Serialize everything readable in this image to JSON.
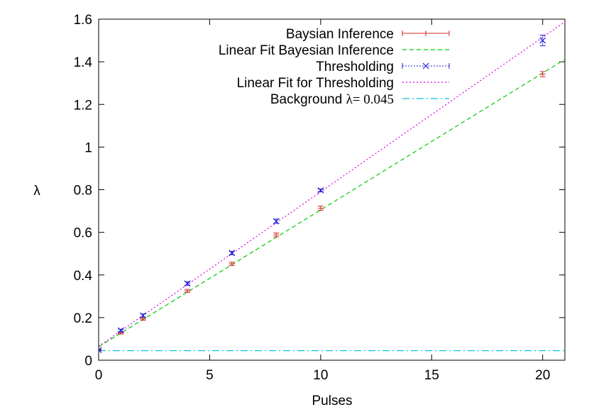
{
  "chart_data": {
    "type": "line",
    "title": "",
    "xlabel": "Pulses",
    "ylabel": "λ",
    "xlim": [
      0,
      21
    ],
    "ylim": [
      0,
      1.6
    ],
    "xticks": [
      "0",
      "5",
      "10",
      "15",
      "20"
    ],
    "xtick_values": [
      0,
      5,
      10,
      15,
      20
    ],
    "yticks": [
      "0",
      "0.2",
      "0.4",
      "0.6",
      "0.8",
      "1",
      "1.2",
      "1.4",
      "1.6"
    ],
    "ytick_values": [
      0,
      0.2,
      0.4,
      0.6,
      0.8,
      1.0,
      1.2,
      1.4,
      1.6
    ],
    "grid": false,
    "legend_position": "top-right",
    "series": [
      {
        "name": "Baysian Inference",
        "kind": "errorbar",
        "color": "#d62728",
        "points": [
          {
            "x": 0,
            "y": 0.048,
            "err": 0.003
          },
          {
            "x": 1,
            "y": 0.128,
            "err": 0.005
          },
          {
            "x": 2,
            "y": 0.193,
            "err": 0.006
          },
          {
            "x": 4,
            "y": 0.325,
            "err": 0.007
          },
          {
            "x": 6,
            "y": 0.452,
            "err": 0.008
          },
          {
            "x": 8,
            "y": 0.588,
            "err": 0.009
          },
          {
            "x": 10,
            "y": 0.713,
            "err": 0.01
          },
          {
            "x": 20,
            "y": 1.342,
            "err": 0.012
          }
        ]
      },
      {
        "name": "Linear Fit Bayesian Inference",
        "kind": "fit",
        "color": "#00cc00",
        "dash": "6,4",
        "intercept": 0.063,
        "slope": 0.0642
      },
      {
        "name": "Thresholding",
        "kind": "errorbar-x",
        "color": "#1f1fd6",
        "points": [
          {
            "x": 0,
            "y": 0.048,
            "err": 0.004
          },
          {
            "x": 1,
            "y": 0.14,
            "err": 0.006
          },
          {
            "x": 2,
            "y": 0.21,
            "err": 0.007
          },
          {
            "x": 4,
            "y": 0.36,
            "err": 0.008
          },
          {
            "x": 6,
            "y": 0.503,
            "err": 0.008
          },
          {
            "x": 8,
            "y": 0.652,
            "err": 0.01
          },
          {
            "x": 10,
            "y": 0.797,
            "err": 0.006
          },
          {
            "x": 20,
            "y": 1.5,
            "err": 0.025
          }
        ]
      },
      {
        "name": "Linear Fit for Thresholding",
        "kind": "fit",
        "color": "#dd00dd",
        "dash": "2,3",
        "intercept": 0.065,
        "slope": 0.0725
      },
      {
        "name": "Background ",
        "kind": "hline",
        "color": "#00c8d8",
        "dash": "10,4,2,4",
        "value": 0.045,
        "math": "λ= 0.045"
      }
    ]
  }
}
